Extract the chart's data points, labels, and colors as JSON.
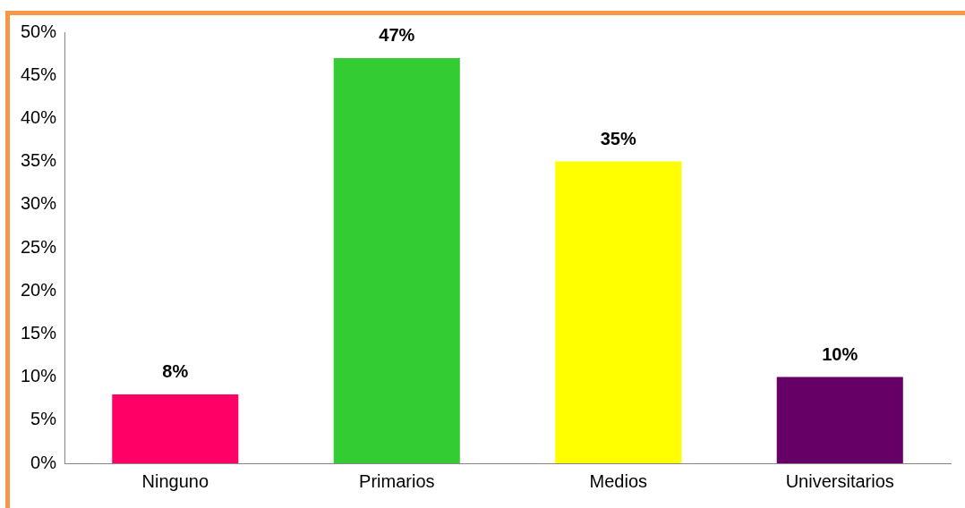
{
  "chart_data": {
    "type": "bar",
    "categories": [
      "Ninguno",
      "Primarios",
      "Medios",
      "Universitarios"
    ],
    "values": [
      8,
      47,
      35,
      10
    ],
    "colors": [
      "#ff0066",
      "#33cc33",
      "#ffff00",
      "#660066"
    ],
    "value_labels": [
      "8%",
      "47%",
      "35%",
      "10%"
    ],
    "ylim": [
      0,
      50
    ],
    "yticks": [
      {
        "value": 0,
        "label": "0%"
      },
      {
        "value": 5,
        "label": "5%"
      },
      {
        "value": 10,
        "label": "10%"
      },
      {
        "value": 15,
        "label": "15%"
      },
      {
        "value": 20,
        "label": "20%"
      },
      {
        "value": 25,
        "label": "25%"
      },
      {
        "value": 30,
        "label": "30%"
      },
      {
        "value": 35,
        "label": "35%"
      },
      {
        "value": 40,
        "label": "40%"
      },
      {
        "value": 45,
        "label": "45%"
      },
      {
        "value": 50,
        "label": "50%"
      }
    ],
    "grid": false,
    "legend": false
  }
}
